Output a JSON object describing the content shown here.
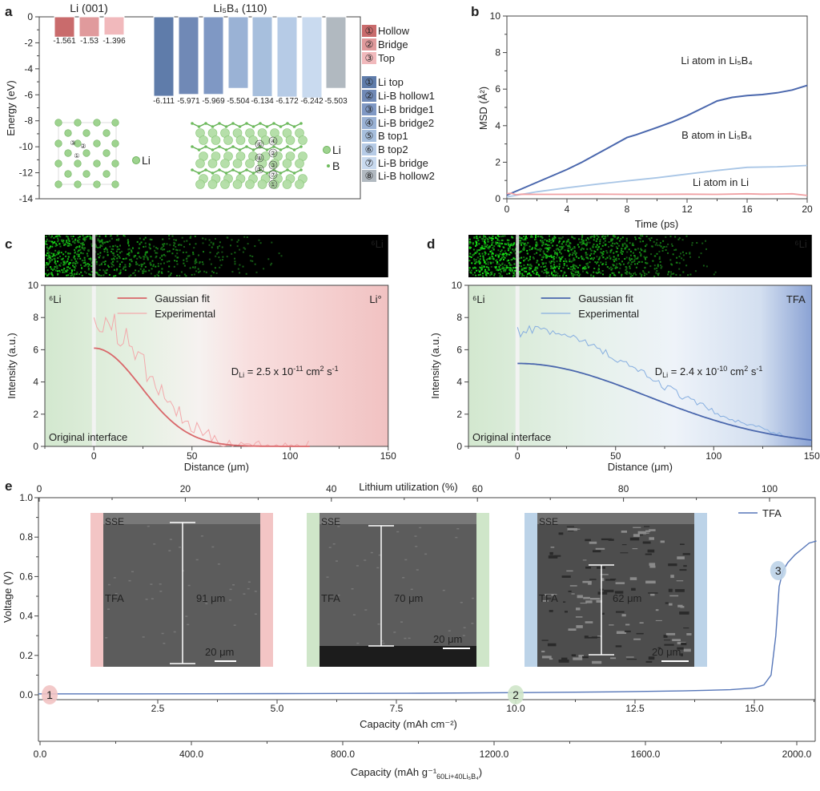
{
  "panel_labels": {
    "a": "a",
    "b": "b",
    "c": "c",
    "d": "d",
    "e": "e"
  },
  "chart_data": [
    {
      "id": "a",
      "type": "bar",
      "ylabel": "Energy (eV)",
      "ylim": [
        -14,
        0
      ],
      "yticks": [
        "0",
        "-2",
        "-4",
        "-6",
        "-8",
        "-10",
        "-12",
        "-14"
      ],
      "groups": [
        {
          "title": "Li (001)",
          "values": [
            -1.561,
            -1.53,
            -1.396
          ],
          "labels": [
            "-1.561",
            "-1.53",
            "-1.396"
          ],
          "colors": [
            "#c96b6c",
            "#e09a9c",
            "#f1b9bc"
          ]
        },
        {
          "title": "Li₅B₄ (110)",
          "values": [
            -6.111,
            -5.971,
            -5.969,
            -5.504,
            -6.134,
            -6.172,
            -6.242,
            -5.503
          ],
          "labels": [
            "-6.111",
            "-5.971",
            "-5.969",
            "-5.504",
            "-6.134",
            "-6.172",
            "-6.242",
            "-5.503"
          ],
          "colors": [
            "#5f7caa",
            "#7089b6",
            "#7f98c4",
            "#9ab2d5",
            "#a7bfdd",
            "#b6cbe6",
            "#c9daef",
            "#b1b9c0"
          ]
        }
      ],
      "legend_li": [
        {
          "num": "①",
          "label": "Hollow",
          "color": "#c96b6c",
          "text_color": "#d46a6e"
        },
        {
          "num": "②",
          "label": "Bridge",
          "color": "#e09a9c",
          "text_color": "#e08a8e"
        },
        {
          "num": "③",
          "label": "Top",
          "color": "#f1b9bc",
          "text_color": "#eea5a8"
        }
      ],
      "legend_li5b4": [
        {
          "num": "①",
          "label": "Li top",
          "color": "#5f7caa",
          "text_color": "#4f6fa8"
        },
        {
          "num": "②",
          "label": "Li-B hollow1",
          "color": "#7089b6",
          "text_color": "#6783b8"
        },
        {
          "num": "③",
          "label": "Li-B bridge1",
          "color": "#7f98c4",
          "text_color": "#7592c2"
        },
        {
          "num": "④",
          "label": "Li-B bridge2",
          "color": "#9ab2d5",
          "text_color": "#86a2cc"
        },
        {
          "num": "⑤",
          "label": "B top1",
          "color": "#a7bfdd",
          "text_color": "#9db8de"
        },
        {
          "num": "⑥",
          "label": "B top2",
          "color": "#b6cbe6",
          "text_color": "#a9c2e4"
        },
        {
          "num": "⑦",
          "label": "Li-B bridge",
          "color": "#c9daef",
          "text_color": "#bcd2ec"
        },
        {
          "num": "⑧",
          "label": "Li-B hollow2",
          "color": "#b1b9c0",
          "text_color": "#a8b0b8"
        }
      ],
      "structure_li": {
        "atom_label": "Li",
        "site_nums": [
          "③",
          "②",
          "①"
        ]
      },
      "structure_li5b4": {
        "atom_labels": [
          "Li",
          "B"
        ],
        "site_nums": [
          "④",
          "②",
          "③",
          "⑦",
          "①",
          "⑥",
          "⑧",
          "⑤"
        ]
      }
    },
    {
      "id": "b",
      "type": "line",
      "xlabel": "Time (ps)",
      "ylabel": "MSD (Å²)",
      "xlim": [
        0,
        20
      ],
      "ylim": [
        0,
        10
      ],
      "xticks": [
        "0",
        "4",
        "8",
        "12",
        "16",
        "20"
      ],
      "yticks": [
        "0",
        "2",
        "4",
        "6",
        "8",
        "10"
      ],
      "series": [
        {
          "name": "Li atom in Li₅B₄",
          "color": "#4a67ad",
          "x": [
            0,
            1,
            2,
            3,
            4,
            5,
            6,
            7,
            8,
            8.6,
            10,
            11,
            12,
            13,
            14,
            15,
            16,
            17,
            18,
            19,
            20
          ],
          "y": [
            0.2,
            0.55,
            0.9,
            1.25,
            1.6,
            2.0,
            2.45,
            2.9,
            3.35,
            3.5,
            3.9,
            4.2,
            4.55,
            4.95,
            5.35,
            5.55,
            5.65,
            5.7,
            5.8,
            5.95,
            6.2
          ]
        },
        {
          "name": "B atom in Li₅B₄",
          "color": "#a9c6e6",
          "x": [
            0,
            2,
            4,
            6,
            8,
            10,
            12,
            14,
            16,
            18,
            20
          ],
          "y": [
            0.1,
            0.38,
            0.6,
            0.8,
            0.98,
            1.15,
            1.35,
            1.55,
            1.72,
            1.75,
            1.82
          ]
        },
        {
          "name": "Li atom in Li",
          "color": "#f0a0a3",
          "x": [
            0,
            0.3,
            0.6,
            1,
            2,
            4,
            6,
            8,
            10,
            12,
            14,
            16,
            17,
            18,
            19,
            20
          ],
          "y": [
            0.28,
            0.3,
            0.22,
            0.25,
            0.24,
            0.24,
            0.25,
            0.24,
            0.24,
            0.25,
            0.24,
            0.27,
            0.25,
            0.26,
            0.27,
            0.18
          ]
        }
      ]
    },
    {
      "id": "c",
      "type": "line",
      "strip_label": "⁶Li",
      "corner_left": "⁶Li",
      "corner_right": "Li°",
      "xlabel": "Distance (μm)",
      "ylabel": "Intensity (a.u.)",
      "xlim": [
        -25,
        150
      ],
      "ylim": [
        0,
        10
      ],
      "xticks": [
        "0",
        "50",
        "100",
        "150"
      ],
      "yticks": [
        "0",
        "2",
        "4",
        "6",
        "8",
        "10"
      ],
      "legend": [
        "Gaussian fit",
        "Experimental"
      ],
      "fit": {
        "amplitude": 6.1,
        "sigma": 24,
        "x_end": 110
      },
      "experimental": {
        "start": 8.0,
        "decay_sigma": 26,
        "noise": 1.4,
        "x_end": 110
      },
      "line_color": "#d9676a",
      "exp_color": "#f3a9ab",
      "annotation": {
        "prefix": "D",
        "sub": "Li",
        "mid": " = 2.5 x 10",
        "exp": "-11",
        "unit": " cm",
        "unit_exp": "2",
        "tail": " s",
        "tail_exp": "-1"
      },
      "interface_label": "Original interface"
    },
    {
      "id": "d",
      "type": "line",
      "strip_label": "⁶Li",
      "corner_left": "⁶Li",
      "corner_right": "TFA",
      "xlabel": "Distance (μm)",
      "ylabel": "Intensity (a.u.)",
      "xlim": [
        -25,
        150
      ],
      "ylim": [
        0,
        10
      ],
      "xticks": [
        "0",
        "50",
        "100",
        "150"
      ],
      "yticks": [
        "0",
        "2",
        "4",
        "6",
        "8",
        "10"
      ],
      "legend": [
        "Gaussian fit",
        "Experimental"
      ],
      "fit": {
        "amplitude": 5.15,
        "sigma": 66,
        "x_end": 150
      },
      "experimental": {
        "start": 7.4,
        "decay_sigma": 64,
        "noise": 0.45,
        "x_end": 135
      },
      "line_color": "#4a67ad",
      "exp_color": "#86aee0",
      "annotation": {
        "prefix": "D",
        "sub": "Li",
        "mid": " = 2.4 x 10",
        "exp": "-10",
        "unit": " cm",
        "unit_exp": "2",
        "tail": " s",
        "tail_exp": "-1"
      },
      "interface_label": "Original interface"
    },
    {
      "id": "e",
      "type": "line",
      "top_xlabel": "Lithium utilization (%)",
      "top_xticks": [
        "0",
        "20",
        "40",
        "60",
        "80",
        "100"
      ],
      "xlabel": "Capacity (mAh cm⁻²)",
      "xticks": [
        "2.5",
        "5.0",
        "7.5",
        "10.0",
        "12.5",
        "15.0"
      ],
      "xlabel2": "Capacity (mAh g⁻¹",
      "xlabel2_sub": "60Li+40Li₅B₄",
      "xlabel2_close": ")",
      "xticks2": [
        "0.0",
        "400.0",
        "800.0",
        "1200.0",
        "1600.0",
        "2000.0"
      ],
      "ylabel": "Voltage (V)",
      "yticks": [
        "0.0",
        "0.2",
        "0.4",
        "0.6",
        "0.8",
        "1.0"
      ],
      "xlim": [
        0,
        16.3
      ],
      "ylim": [
        0,
        1.0
      ],
      "series": [
        {
          "name": "TFA",
          "color": "#5676b8",
          "x": [
            0,
            2,
            5,
            8,
            10,
            12,
            13.5,
            14.5,
            15,
            15.2,
            15.35,
            15.45,
            15.52,
            15.6,
            15.7,
            15.85,
            16.0,
            16.15,
            16.3
          ],
          "y": [
            0.005,
            0.005,
            0.006,
            0.008,
            0.011,
            0.015,
            0.02,
            0.026,
            0.035,
            0.05,
            0.1,
            0.3,
            0.55,
            0.63,
            0.67,
            0.71,
            0.74,
            0.77,
            0.78
          ]
        }
      ],
      "markers": [
        {
          "label": "1",
          "x": 0.25,
          "y": 0.0,
          "color": "#f2c3c3"
        },
        {
          "label": "2",
          "x": 10.0,
          "y": 0.0,
          "color": "#cfe6c9"
        },
        {
          "label": "3",
          "x": 15.5,
          "y": 0.63,
          "color": "#bcd3e8"
        }
      ],
      "insets": [
        {
          "top": "SSE",
          "mid": "TFA",
          "thickness": "91 μm",
          "scale": "20 μm",
          "frame": "#f3c5c5"
        },
        {
          "top": "SSE",
          "mid": "TFA",
          "thickness": "70 μm",
          "scale": "20 μm",
          "frame": "#cfe6c9"
        },
        {
          "top": "SSE",
          "mid": "TFA",
          "thickness": "62 μm",
          "scale": "20 μm",
          "frame": "#bcd3e8"
        }
      ]
    }
  ]
}
